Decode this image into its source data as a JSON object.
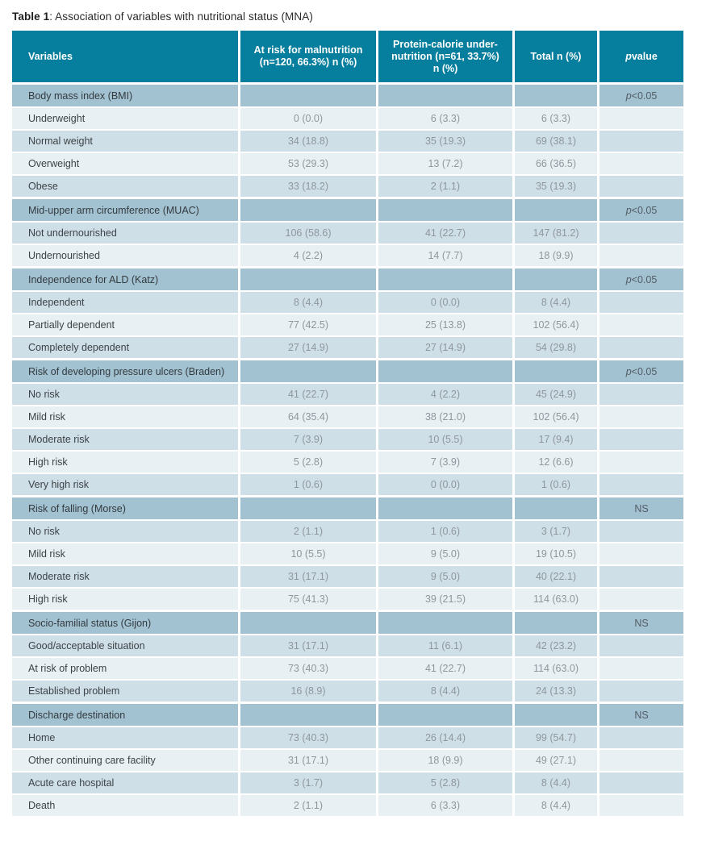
{
  "title": {
    "bold": "Table 1",
    "rest": ": Association of variables with nutritional status (MNA)"
  },
  "colors": {
    "header_teal": "#067e9d",
    "section_blue": "#a2c1d1",
    "row_medium": "#cfdfe8",
    "row_light": "#e8f0f4",
    "header_text": "#ffffff",
    "label_text": "#3c4347",
    "value_text": "#8e979c"
  },
  "table": {
    "columns": [
      {
        "lines": [
          "Variables"
        ],
        "align": "left",
        "italic_first": false
      },
      {
        "lines": [
          "At risk for malnutrition",
          "(n=120, 66.3%) n (%)"
        ],
        "align": "center",
        "italic_first": false
      },
      {
        "lines": [
          "Protein-calorie under-",
          "nutrition (n=61, 33.7%)",
          "n (%)"
        ],
        "align": "center",
        "italic_first": false
      },
      {
        "lines": [
          "Total n (%)"
        ],
        "align": "center",
        "italic_first": false
      },
      {
        "lines": [
          "p value"
        ],
        "align": "center",
        "italic_first": true
      }
    ],
    "sections": [
      {
        "label": "Body mass index (BMI)",
        "p_value": "p<0.05",
        "first_shade": "light",
        "rows": [
          {
            "label": "Underweight",
            "at_risk": "0 (0.0)",
            "pcu": "6 (3.3)",
            "total": "6 (3.3)"
          },
          {
            "label": "Normal weight",
            "at_risk": "34 (18.8)",
            "pcu": "35 (19.3)",
            "total": "69 (38.1)"
          },
          {
            "label": "Overweight",
            "at_risk": "53 (29.3)",
            "pcu": "13 (7.2)",
            "total": "66 (36.5)"
          },
          {
            "label": "Obese",
            "at_risk": "33 (18.2)",
            "pcu": "2 (1.1)",
            "total": "35 (19.3)"
          }
        ]
      },
      {
        "label": "Mid-upper arm circumference (MUAC)",
        "p_value": "p<0.05",
        "first_shade": "medium",
        "rows": [
          {
            "label": "Not undernourished",
            "at_risk": "106 (58.6)",
            "pcu": "41 (22.7)",
            "total": "147 (81.2)"
          },
          {
            "label": "Undernourished",
            "at_risk": "4 (2.2)",
            "pcu": "14 (7.7)",
            "total": "18 (9.9)"
          }
        ]
      },
      {
        "label": "Independence for ALD (Katz)",
        "p_value": "p<0.05",
        "first_shade": "medium",
        "rows": [
          {
            "label": "Independent",
            "at_risk": "8 (4.4)",
            "pcu": "0 (0.0)",
            "total": "8 (4.4)"
          },
          {
            "label": "Partially dependent",
            "at_risk": "77 (42.5)",
            "pcu": "25 (13.8)",
            "total": "102 (56.4)"
          },
          {
            "label": "Completely dependent",
            "at_risk": "27 (14.9)",
            "pcu": "27 (14.9)",
            "total": "54 (29.8)"
          }
        ]
      },
      {
        "label": "Risk of developing pressure ulcers (Braden)",
        "p_value": "p<0.05",
        "first_shade": "medium",
        "rows": [
          {
            "label": "No risk",
            "at_risk": "41 (22.7)",
            "pcu": "4 (2.2)",
            "total": "45 (24.9)"
          },
          {
            "label": "Mild risk",
            "at_risk": "64 (35.4)",
            "pcu": "38 (21.0)",
            "total": "102 (56.4)"
          },
          {
            "label": "Moderate risk",
            "at_risk": "7 (3.9)",
            "pcu": "10 (5.5)",
            "total": "17 (9.4)"
          },
          {
            "label": "High risk",
            "at_risk": "5 (2.8)",
            "pcu": "7 (3.9)",
            "total": "12 (6.6)"
          },
          {
            "label": "Very high risk",
            "at_risk": "1 (0.6)",
            "pcu": "0 (0.0)",
            "total": "1 (0.6)"
          }
        ]
      },
      {
        "label": "Risk of falling (Morse)",
        "p_value": "NS",
        "first_shade": "medium",
        "rows": [
          {
            "label": "No risk",
            "at_risk": "2 (1.1)",
            "pcu": "1 (0.6)",
            "total": "3 (1.7)"
          },
          {
            "label": "Mild risk",
            "at_risk": "10 (5.5)",
            "pcu": "9 (5.0)",
            "total": "19 (10.5)"
          },
          {
            "label": "Moderate risk",
            "at_risk": "31 (17.1)",
            "pcu": "9 (5.0)",
            "total": "40 (22.1)"
          },
          {
            "label": "High risk",
            "at_risk": "75 (41.3)",
            "pcu": "39 (21.5)",
            "total": "114 (63.0)"
          }
        ]
      },
      {
        "label": "Socio-familial status (Gijon)",
        "p_value": "NS",
        "first_shade": "medium",
        "rows": [
          {
            "label": "Good/acceptable situation",
            "at_risk": "31 (17.1)",
            "pcu": "11 (6.1)",
            "total": "42 (23.2)"
          },
          {
            "label": "At risk of problem",
            "at_risk": "73 (40.3)",
            "pcu": "41 (22.7)",
            "total": "114 (63.0)"
          },
          {
            "label": "Established problem",
            "at_risk": "16 (8.9)",
            "pcu": "8 (4.4)",
            "total": "24 (13.3)"
          }
        ]
      },
      {
        "label": "Discharge destination",
        "p_value": "NS",
        "first_shade": "medium",
        "rows": [
          {
            "label": "Home",
            "at_risk": "73 (40.3)",
            "pcu": "26 (14.4)",
            "total": "99 (54.7)"
          },
          {
            "label": "Other continuing care facility",
            "at_risk": "31 (17.1)",
            "pcu": "18 (9.9)",
            "total": "49 (27.1)"
          },
          {
            "label": "Acute care hospital",
            "at_risk": "3 (1.7)",
            "pcu": "5 (2.8)",
            "total": "8 (4.4)"
          },
          {
            "label": "Death",
            "at_risk": "2 (1.1)",
            "pcu": "6 (3.3)",
            "total": "8 (4.4)"
          }
        ]
      }
    ]
  }
}
